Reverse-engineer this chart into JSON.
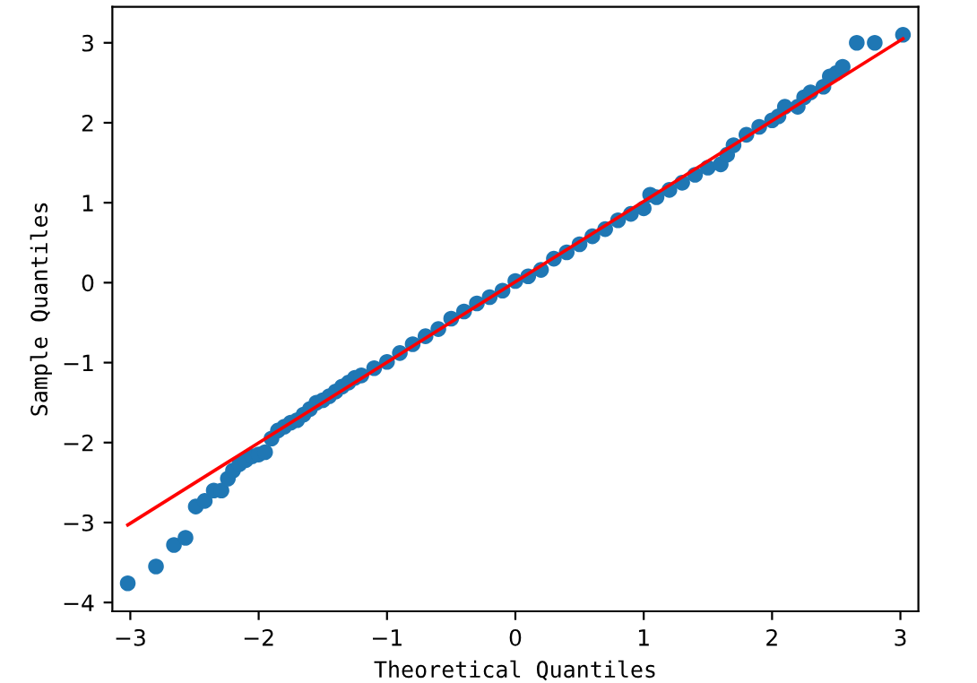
{
  "chart_data": {
    "type": "scatter",
    "xlabel": "Theoretical Quantiles",
    "ylabel": "Sample Quantiles",
    "xlim": [
      -3.14,
      3.14
    ],
    "ylim": [
      -4.11,
      3.45
    ],
    "xticks": [
      -3,
      -2,
      -1,
      0,
      1,
      2,
      3
    ],
    "yticks": [
      -4,
      -3,
      -2,
      -1,
      0,
      1,
      2,
      3
    ],
    "grid": false,
    "series": [
      {
        "marker": "circle",
        "color": "#1f77b4",
        "x": [
          -3.02,
          -2.8,
          -2.66,
          -2.57,
          -2.49,
          -2.42,
          -2.35,
          -2.29,
          -2.24,
          -2.2,
          -2.15,
          -2.1,
          -2.05,
          -2.0,
          -1.95,
          -1.9,
          -1.85,
          -1.8,
          -1.75,
          -1.7,
          -1.65,
          -1.6,
          -1.55,
          -1.5,
          -1.45,
          -1.4,
          -1.35,
          -1.3,
          -1.25,
          -1.2,
          -1.1,
          -1.0,
          -0.9,
          -0.8,
          -0.7,
          -0.6,
          -0.5,
          -0.4,
          -0.3,
          -0.2,
          -0.1,
          0.0,
          0.1,
          0.2,
          0.3,
          0.4,
          0.5,
          0.6,
          0.7,
          0.8,
          0.9,
          1.0,
          1.05,
          1.1,
          1.2,
          1.3,
          1.4,
          1.5,
          1.6,
          1.65,
          1.7,
          1.8,
          1.9,
          2.0,
          2.05,
          2.1,
          2.2,
          2.25,
          2.3,
          2.4,
          2.45,
          2.5,
          2.55,
          2.66,
          2.8,
          3.02
        ],
        "values": [
          -3.76,
          -3.55,
          -3.28,
          -3.19,
          -2.8,
          -2.73,
          -2.6,
          -2.6,
          -2.45,
          -2.35,
          -2.27,
          -2.22,
          -2.17,
          -2.15,
          -2.12,
          -1.95,
          -1.85,
          -1.8,
          -1.75,
          -1.72,
          -1.65,
          -1.58,
          -1.5,
          -1.47,
          -1.42,
          -1.36,
          -1.3,
          -1.25,
          -1.19,
          -1.16,
          -1.07,
          -0.99,
          -0.88,
          -0.77,
          -0.67,
          -0.58,
          -0.45,
          -0.36,
          -0.26,
          -0.18,
          -0.1,
          0.02,
          0.08,
          0.16,
          0.3,
          0.38,
          0.48,
          0.58,
          0.67,
          0.78,
          0.86,
          0.93,
          1.1,
          1.07,
          1.16,
          1.25,
          1.35,
          1.44,
          1.48,
          1.6,
          1.72,
          1.85,
          1.95,
          2.03,
          2.08,
          2.2,
          2.2,
          2.32,
          2.38,
          2.45,
          2.58,
          2.62,
          2.7,
          3.0,
          3.0,
          3.1
        ]
      },
      {
        "type": "line",
        "color": "#ff0000",
        "x": [
          -3.02,
          3.02
        ],
        "values": [
          -3.03,
          3.05
        ]
      }
    ]
  }
}
